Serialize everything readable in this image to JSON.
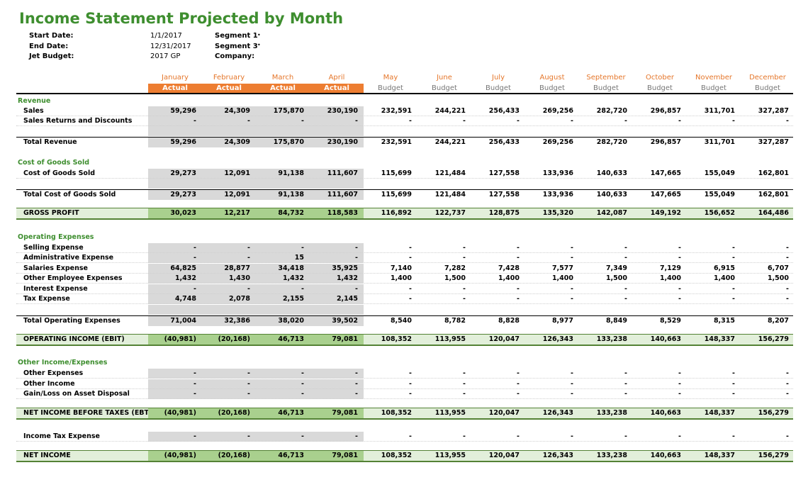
{
  "title": "Income Statement Projected by Month",
  "meta": {
    "start_label": "Start Date:",
    "start_value": "1/1/2017",
    "end_label": "End Date:",
    "end_value": "12/31/2017",
    "jet_label": "Jet Budget:",
    "jet_value": "2017 GP",
    "seg1_label": "Segment 1",
    "seg3_label": "Segment 3",
    "company_label": "Company:"
  },
  "colors": {
    "title_green": "#3e8e2f",
    "orange": "#ed7d31",
    "actual_fill": "#d9d9d9",
    "highlight_fill": "#e2efda",
    "highlight_actual_fill": "#a9d08e"
  },
  "months": [
    "January",
    "February",
    "March",
    "April",
    "May",
    "June",
    "July",
    "August",
    "September",
    "October",
    "November",
    "December"
  ],
  "kinds": [
    "Actual",
    "Actual",
    "Actual",
    "Actual",
    "Budget",
    "Budget",
    "Budget",
    "Budget",
    "Budget",
    "Budget",
    "Budget",
    "Budget"
  ],
  "rows": [
    {
      "type": "section",
      "label": "Revenue",
      "top": 136
    },
    {
      "type": "data",
      "label": "Sales",
      "top": 150,
      "values": [
        "59,296",
        "24,309",
        "175,870",
        "230,190",
        "232,591",
        "244,221",
        "256,433",
        "269,256",
        "282,720",
        "296,857",
        "311,701",
        "327,287"
      ]
    },
    {
      "type": "data",
      "label": "Sales Returns and Discounts",
      "top": 164,
      "values": [
        "-",
        "-",
        "-",
        "-",
        "-",
        "-",
        "-",
        "-",
        "-",
        "-",
        "-",
        "-"
      ]
    },
    {
      "type": "blank",
      "top": 178
    },
    {
      "type": "total",
      "label": "Total Revenue",
      "top": 193,
      "values": [
        "59,296",
        "24,309",
        "175,870",
        "230,190",
        "232,591",
        "244,221",
        "256,433",
        "269,256",
        "282,720",
        "296,857",
        "311,701",
        "327,287"
      ]
    },
    {
      "type": "section",
      "label": "Cost of Goods Sold",
      "top": 223
    },
    {
      "type": "data",
      "label": "Cost of Goods Sold",
      "top": 238,
      "values": [
        "29,273",
        "12,091",
        "91,138",
        "111,607",
        "115,699",
        "121,484",
        "127,558",
        "133,936",
        "140,633",
        "147,665",
        "155,049",
        "162,801"
      ]
    },
    {
      "type": "blank",
      "top": 252
    },
    {
      "type": "total",
      "label": "Total Cost of Goods Sold",
      "top": 267,
      "values": [
        "29,273",
        "12,091",
        "91,138",
        "111,607",
        "115,699",
        "121,484",
        "127,558",
        "133,936",
        "140,633",
        "147,665",
        "155,049",
        "162,801"
      ]
    },
    {
      "type": "hl",
      "label": "GROSS PROFIT",
      "top": 296,
      "values": [
        "30,023",
        "12,217",
        "84,732",
        "118,583",
        "116,892",
        "122,737",
        "128,875",
        "135,320",
        "142,087",
        "149,192",
        "156,652",
        "164,486"
      ]
    },
    {
      "type": "section",
      "label": "Operating Expenses",
      "top": 328
    },
    {
      "type": "data",
      "label": "Selling Expense",
      "top": 343,
      "values": [
        "-",
        "-",
        "-",
        "-",
        "-",
        "-",
        "-",
        "-",
        "-",
        "-",
        "-",
        "-"
      ]
    },
    {
      "type": "data",
      "label": "Administrative Expense",
      "top": 357,
      "values": [
        "-",
        "-",
        "15",
        "-",
        "-",
        "-",
        "-",
        "-",
        "-",
        "-",
        "-",
        "-"
      ]
    },
    {
      "type": "data",
      "label": "Salaries Expense",
      "top": 372,
      "values": [
        "64,825",
        "28,877",
        "34,418",
        "35,925",
        "7,140",
        "7,282",
        "7,428",
        "7,577",
        "7,349",
        "7,129",
        "6,915",
        "6,707"
      ]
    },
    {
      "type": "data",
      "label": "Other Employee Expenses",
      "top": 386,
      "values": [
        "1,432",
        "1,430",
        "1,432",
        "1,432",
        "1,400",
        "1,500",
        "1,400",
        "1,400",
        "1,500",
        "1,400",
        "1,400",
        "1,500"
      ]
    },
    {
      "type": "data",
      "label": "Interest Expense",
      "top": 401,
      "values": [
        "-",
        "-",
        "-",
        "-",
        "-",
        "-",
        "-",
        "-",
        "-",
        "-",
        "-",
        "-"
      ]
    },
    {
      "type": "data",
      "label": "Tax Expense",
      "top": 415,
      "values": [
        "4,748",
        "2,078",
        "2,155",
        "2,145",
        "-",
        "-",
        "-",
        "-",
        "-",
        "-",
        "-",
        "-"
      ]
    },
    {
      "type": "blank",
      "top": 430
    },
    {
      "type": "total",
      "label": "Total Operating Expenses",
      "top": 445,
      "values": [
        "71,004",
        "32,386",
        "38,020",
        "39,502",
        "8,540",
        "8,782",
        "8,828",
        "8,977",
        "8,849",
        "8,529",
        "8,315",
        "8,207"
      ]
    },
    {
      "type": "hl",
      "label": "OPERATING INCOME (EBIT)",
      "top": 474,
      "values": [
        "(40,981)",
        "(20,168)",
        "46,713",
        "79,081",
        "108,352",
        "113,955",
        "120,047",
        "126,343",
        "133,238",
        "140,663",
        "148,337",
        "156,279"
      ]
    },
    {
      "type": "section",
      "label": "Other Income/Expenses",
      "top": 505
    },
    {
      "type": "data",
      "label": "Other Expenses",
      "top": 520,
      "values": [
        "-",
        "-",
        "-",
        "-",
        "-",
        "-",
        "-",
        "-",
        "-",
        "-",
        "-",
        "-"
      ]
    },
    {
      "type": "data",
      "label": "Other Income",
      "top": 535,
      "values": [
        "-",
        "-",
        "-",
        "-",
        "-",
        "-",
        "-",
        "-",
        "-",
        "-",
        "-",
        "-"
      ]
    },
    {
      "type": "data",
      "label": "Gain/Loss on Asset Disposal",
      "top": 549,
      "values": [
        "-",
        "-",
        "-",
        "-",
        "-",
        "-",
        "-",
        "-",
        "-",
        "-",
        "-",
        "-"
      ]
    },
    {
      "type": "hl",
      "label": "NET INCOME BEFORE TAXES (EBT)",
      "top": 578,
      "values": [
        "(40,981)",
        "(20,168)",
        "46,713",
        "79,081",
        "108,352",
        "113,955",
        "120,047",
        "126,343",
        "133,238",
        "140,663",
        "148,337",
        "156,279"
      ]
    },
    {
      "type": "data",
      "label": "Income Tax Expense",
      "top": 609,
      "values": [
        "-",
        "-",
        "-",
        "-",
        "-",
        "-",
        "-",
        "-",
        "-",
        "-",
        "-",
        "-"
      ]
    },
    {
      "type": "hl",
      "label": "NET INCOME",
      "top": 638,
      "values": [
        "(40,981)",
        "(20,168)",
        "46,713",
        "79,081",
        "108,352",
        "113,955",
        "120,047",
        "126,343",
        "133,238",
        "140,663",
        "148,337",
        "156,279"
      ]
    }
  ]
}
